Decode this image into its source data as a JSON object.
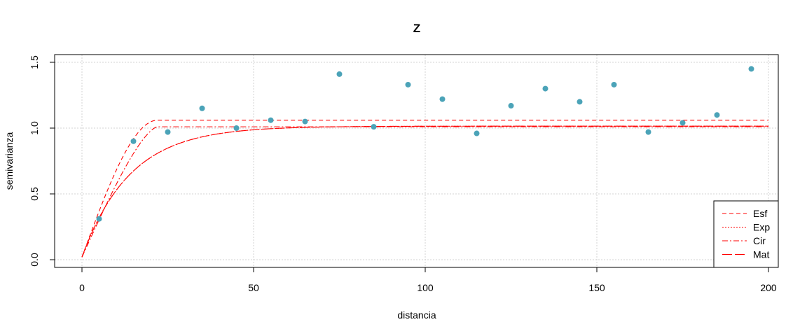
{
  "chart_data": {
    "type": "scatter",
    "title": "Z",
    "xlabel": "distancia",
    "ylabel": "semivarianza",
    "xlim": [
      0,
      200
    ],
    "ylim": [
      0,
      1.5
    ],
    "x_ticks": [
      0,
      50,
      100,
      150,
      200
    ],
    "y_ticks": [
      0.0,
      0.5,
      1.0,
      1.5
    ],
    "x_tick_labels": [
      "0",
      "50",
      "100",
      "150",
      "200"
    ],
    "y_tick_labels": [
      "0.0",
      "0.5",
      "1.0",
      "1.5"
    ],
    "grid": true,
    "legend_position": "bottom-right",
    "point_color": "#4BA3B8",
    "line_color": "#FF0000",
    "points": {
      "x": [
        5,
        15,
        25,
        35,
        45,
        55,
        65,
        75,
        85,
        95,
        105,
        115,
        125,
        135,
        145,
        155,
        165,
        175,
        185,
        195
      ],
      "y": [
        0.31,
        0.9,
        0.97,
        1.15,
        1.0,
        1.06,
        1.05,
        1.41,
        1.01,
        1.33,
        1.22,
        0.96,
        1.17,
        1.3,
        1.2,
        1.33,
        0.97,
        1.04,
        1.1,
        1.45
      ]
    },
    "series": [
      {
        "name": "Esf",
        "model": "spherical",
        "nugget": 0.02,
        "sill": 1.06,
        "range": 22,
        "dash": "6,4"
      },
      {
        "name": "Exp",
        "model": "exponential",
        "nugget": 0.02,
        "sill": 1.015,
        "range": 14,
        "dash": "2,2"
      },
      {
        "name": "Cir",
        "model": "circular",
        "nugget": 0.02,
        "sill": 1.01,
        "range": 22,
        "dash": "8,3,2,3"
      },
      {
        "name": "Mat",
        "model": "matern",
        "nugget": 0.02,
        "sill": 1.015,
        "range": 14,
        "dash": "14,4"
      }
    ]
  }
}
